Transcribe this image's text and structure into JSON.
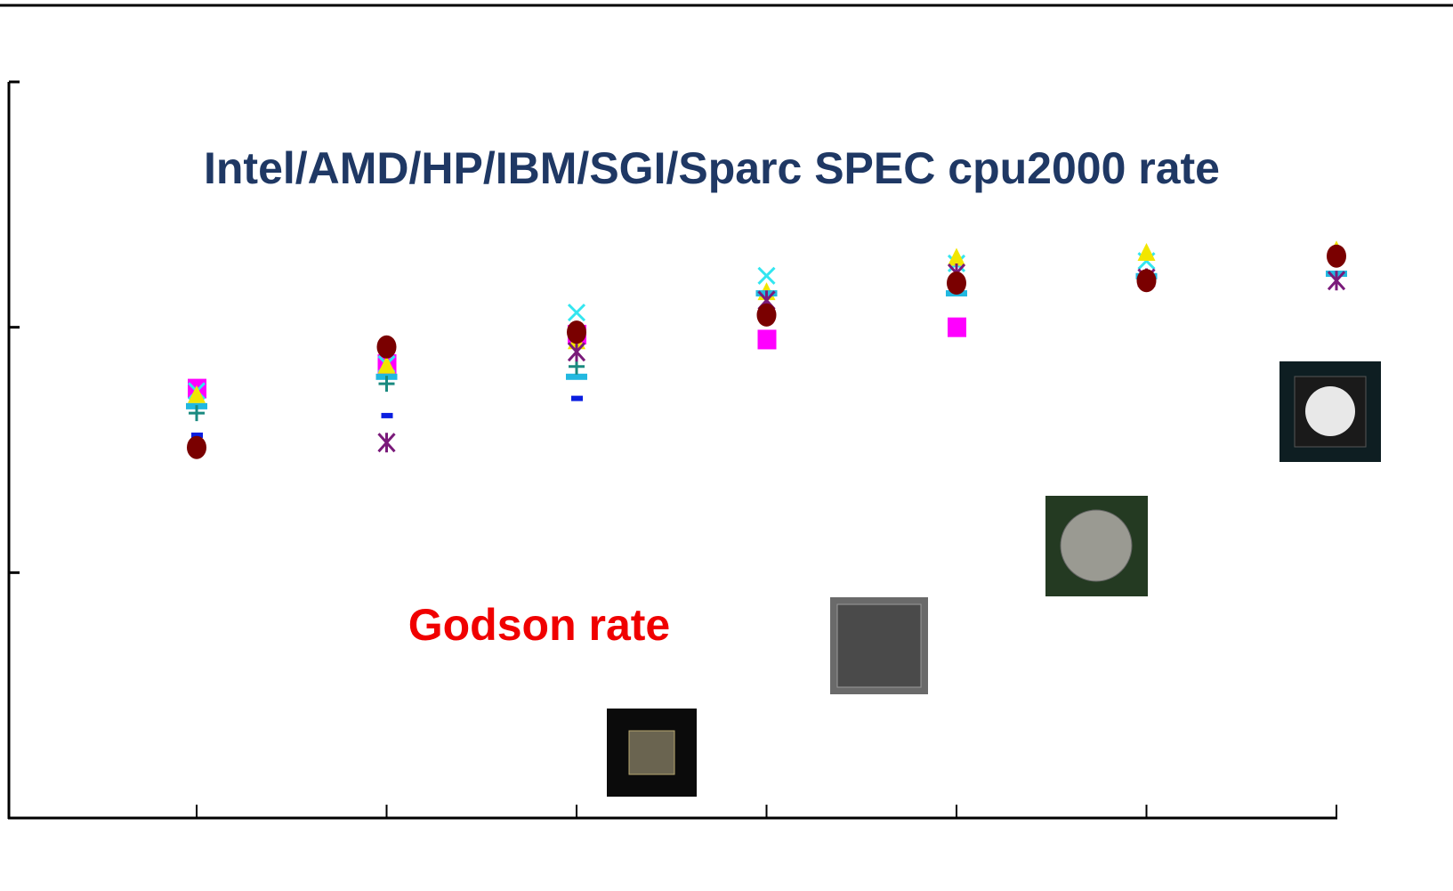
{
  "chart_data": {
    "type": "scatter",
    "title": "Intel/AMD/HP/IBM/SGI/Sparc SPEC cpu2000 rate",
    "annotation": "Godson rate",
    "categories": [
      null,
      null,
      null,
      null,
      null,
      null,
      null
    ],
    "ylim": [
      0,
      3
    ],
    "yticks": [
      0,
      1,
      2,
      3
    ],
    "series": [
      {
        "color": "#ff00ff",
        "marker": "square",
        "values": [
          1.75,
          1.85,
          1.97,
          1.95,
          2.0,
          null,
          null
        ]
      },
      {
        "color": "#33e6f0",
        "marker": "cross",
        "values": [
          1.74,
          1.85,
          2.06,
          2.21,
          2.26,
          2.27,
          null
        ]
      },
      {
        "color": "#f2e600",
        "marker": "triangle",
        "values": [
          1.72,
          1.84,
          1.94,
          2.14,
          2.28,
          2.3,
          2.31
        ]
      },
      {
        "color": "#22b8e0",
        "marker": "bar",
        "values": [
          1.68,
          1.8,
          1.8,
          2.14,
          2.14,
          2.21,
          2.22
        ]
      },
      {
        "color": "#1a8a80",
        "marker": "plus",
        "values": [
          1.65,
          1.77,
          1.84,
          null,
          null,
          null,
          null
        ]
      },
      {
        "color": "#0a1ee0",
        "marker": "dash",
        "values": [
          1.56,
          1.64,
          1.71,
          null,
          null,
          null,
          null
        ]
      },
      {
        "color": "#7a1a7a",
        "marker": "star",
        "values": [
          null,
          1.53,
          1.9,
          2.11,
          2.22,
          2.2,
          2.19
        ]
      },
      {
        "color": "#7a0000",
        "marker": "circle",
        "values": [
          1.51,
          1.92,
          1.98,
          2.05,
          2.18,
          2.19,
          2.29
        ]
      }
    ]
  }
}
